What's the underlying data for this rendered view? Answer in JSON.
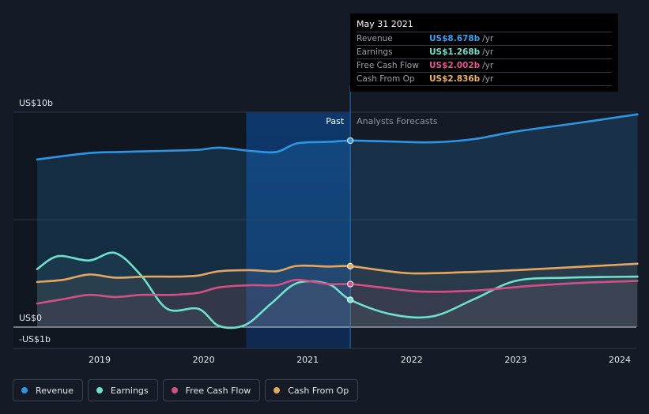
{
  "colors": {
    "revenue": "#2d95e3",
    "earnings": "#6fe0cc",
    "free_cash_flow": "#d35085",
    "cash_from_op": "#e5a660",
    "background": "#151b26"
  },
  "tooltip": {
    "date": "May 31 2021",
    "rows": [
      {
        "name": "Revenue",
        "value": "US$8.678b",
        "unit": "/yr",
        "color": "#3b9ff0"
      },
      {
        "name": "Earnings",
        "value": "US$1.268b",
        "unit": "/yr",
        "color": "#6fe0cc"
      },
      {
        "name": "Free Cash Flow",
        "value": "US$2.002b",
        "unit": "/yr",
        "color": "#e0568f"
      },
      {
        "name": "Cash From Op",
        "value": "US$2.836b",
        "unit": "/yr",
        "color": "#efb066"
      }
    ]
  },
  "legend": [
    {
      "label": "Revenue",
      "color": "#2d95e3"
    },
    {
      "label": "Earnings",
      "color": "#6fe0cc"
    },
    {
      "label": "Free Cash Flow",
      "color": "#d35085"
    },
    {
      "label": "Cash From Op",
      "color": "#e5a660"
    }
  ],
  "chart_data": {
    "type": "line",
    "y_axis_labels": [
      "US$10b",
      "US$0",
      "-US$1b"
    ],
    "ylim": [
      -1,
      10
    ],
    "xlim": [
      2018.4,
      2024.17
    ],
    "x_ticks": [
      2019,
      2020,
      2021,
      2022,
      2023,
      2024
    ],
    "x_tick_labels": [
      "2019",
      "2020",
      "2021",
      "2022",
      "2023",
      "2024"
    ],
    "past_label": "Past",
    "forecast_label": "Analysts Forecasts",
    "divider_x": 2021.41,
    "highlight_start_x": 2020.41,
    "grid": true,
    "legend_position": "bottom-left",
    "series": [
      {
        "name": "Revenue",
        "key": "revenue",
        "points": [
          [
            2018.4,
            7.8
          ],
          [
            2018.9,
            8.1
          ],
          [
            2019.2,
            8.15
          ],
          [
            2019.6,
            8.2
          ],
          [
            2019.95,
            8.25
          ],
          [
            2020.15,
            8.35
          ],
          [
            2020.45,
            8.2
          ],
          [
            2020.7,
            8.15
          ],
          [
            2020.9,
            8.55
          ],
          [
            2021.2,
            8.62
          ],
          [
            2021.41,
            8.678
          ]
        ],
        "forecast": [
          [
            2021.41,
            8.678
          ],
          [
            2021.7,
            8.65
          ],
          [
            2022.2,
            8.6
          ],
          [
            2022.6,
            8.75
          ],
          [
            2023.0,
            9.1
          ],
          [
            2023.6,
            9.5
          ],
          [
            2024.17,
            9.9
          ]
        ]
      },
      {
        "name": "Earnings",
        "key": "earnings",
        "points": [
          [
            2018.4,
            2.7
          ],
          [
            2018.6,
            3.3
          ],
          [
            2018.9,
            3.1
          ],
          [
            2019.15,
            3.45
          ],
          [
            2019.4,
            2.4
          ],
          [
            2019.65,
            0.85
          ],
          [
            2019.95,
            0.85
          ],
          [
            2020.15,
            0.05
          ],
          [
            2020.4,
            0.1
          ],
          [
            2020.65,
            1.1
          ],
          [
            2020.9,
            2.05
          ],
          [
            2021.2,
            2.0
          ],
          [
            2021.41,
            1.268
          ]
        ],
        "forecast": [
          [
            2021.41,
            1.268
          ],
          [
            2021.8,
            0.6
          ],
          [
            2022.2,
            0.5
          ],
          [
            2022.6,
            1.3
          ],
          [
            2023.0,
            2.15
          ],
          [
            2023.5,
            2.3
          ],
          [
            2024.17,
            2.35
          ]
        ]
      },
      {
        "name": "Free Cash Flow",
        "key": "free_cash_flow",
        "points": [
          [
            2018.4,
            1.1
          ],
          [
            2018.65,
            1.3
          ],
          [
            2018.9,
            1.5
          ],
          [
            2019.15,
            1.4
          ],
          [
            2019.4,
            1.5
          ],
          [
            2019.7,
            1.5
          ],
          [
            2019.95,
            1.6
          ],
          [
            2020.15,
            1.85
          ],
          [
            2020.45,
            1.95
          ],
          [
            2020.7,
            1.95
          ],
          [
            2020.9,
            2.2
          ],
          [
            2021.2,
            2.0
          ],
          [
            2021.41,
            2.002
          ]
        ],
        "forecast": [
          [
            2021.41,
            2.002
          ],
          [
            2021.7,
            1.85
          ],
          [
            2022.1,
            1.65
          ],
          [
            2022.6,
            1.7
          ],
          [
            2023.1,
            1.9
          ],
          [
            2023.6,
            2.05
          ],
          [
            2024.17,
            2.15
          ]
        ]
      },
      {
        "name": "Cash From Op",
        "key": "cash_from_op",
        "points": [
          [
            2018.4,
            2.1
          ],
          [
            2018.65,
            2.2
          ],
          [
            2018.9,
            2.45
          ],
          [
            2019.15,
            2.3
          ],
          [
            2019.45,
            2.35
          ],
          [
            2019.75,
            2.35
          ],
          [
            2019.95,
            2.4
          ],
          [
            2020.15,
            2.6
          ],
          [
            2020.45,
            2.65
          ],
          [
            2020.7,
            2.6
          ],
          [
            2020.9,
            2.85
          ],
          [
            2021.2,
            2.82
          ],
          [
            2021.41,
            2.836
          ]
        ],
        "forecast": [
          [
            2021.41,
            2.836
          ],
          [
            2021.7,
            2.65
          ],
          [
            2022.0,
            2.5
          ],
          [
            2022.5,
            2.55
          ],
          [
            2023.0,
            2.65
          ],
          [
            2023.6,
            2.8
          ],
          [
            2024.17,
            2.95
          ]
        ]
      }
    ]
  }
}
